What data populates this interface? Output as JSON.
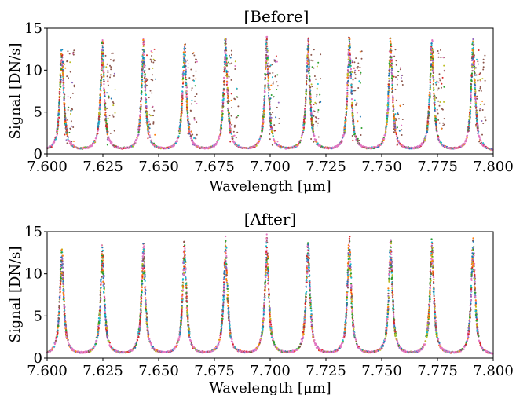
{
  "chart_data": [
    {
      "type": "scatter",
      "title": "[Before]",
      "xlabel": "Wavelength [μm]",
      "ylabel": "Signal [DN/s]",
      "xlim": [
        7.6,
        7.8
      ],
      "ylim": [
        0,
        15
      ],
      "xticks": [
        "7.600",
        "7.625",
        "7.650",
        "7.675",
        "7.700",
        "7.725",
        "7.750",
        "7.775",
        "7.800"
      ],
      "yticks": [
        "0",
        "5",
        "10",
        "15"
      ],
      "grid": false,
      "legend": "none",
      "peak_centers": [
        7.6066,
        7.6248,
        7.6432,
        7.6616,
        7.68,
        7.6985,
        7.717,
        7.7355,
        7.754,
        7.7725,
        7.791
      ],
      "peak_heights": [
        12.8,
        13.0,
        13.2,
        13.2,
        13.3,
        13.4,
        13.4,
        13.5,
        13.4,
        13.5,
        13.6
      ],
      "baseline": 0.3,
      "series_colors": [
        "#e377c2",
        "#1f77b4",
        "#ff7f0e",
        "#2ca02c",
        "#d62728",
        "#9467bd",
        "#8c564b",
        "#bcbd22",
        "#17becf"
      ],
      "outliers": true
    },
    {
      "type": "scatter",
      "title": "[After]",
      "xlabel": "Wavelength [μm]",
      "ylabel": "Signal [DN/s]",
      "xlim": [
        7.6,
        7.8
      ],
      "ylim": [
        0,
        15
      ],
      "xticks": [
        "7.600",
        "7.625",
        "7.650",
        "7.675",
        "7.700",
        "7.725",
        "7.750",
        "7.775",
        "7.800"
      ],
      "yticks": [
        "0",
        "5",
        "10",
        "15"
      ],
      "grid": false,
      "legend": "none",
      "peak_centers": [
        7.6066,
        7.6248,
        7.6432,
        7.6616,
        7.68,
        7.6985,
        7.717,
        7.7355,
        7.754,
        7.7725,
        7.791
      ],
      "peak_heights": [
        12.8,
        13.0,
        13.2,
        13.4,
        13.6,
        13.8,
        13.8,
        14.0,
        13.6,
        13.7,
        13.8
      ],
      "baseline": 0.3,
      "series_colors": [
        "#e377c2",
        "#1f77b4",
        "#ff7f0e",
        "#2ca02c",
        "#d62728",
        "#9467bd",
        "#8c564b",
        "#bcbd22",
        "#17becf"
      ],
      "outliers": false
    }
  ]
}
